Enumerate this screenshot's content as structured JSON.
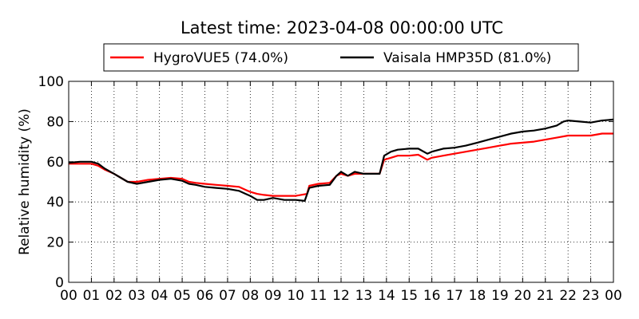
{
  "chart_data": {
    "type": "line",
    "title": "Latest time: 2023-04-08 00:00:00 UTC",
    "ylabel": "Relative humidity (%)",
    "xlabel": "",
    "ylim": [
      0,
      100
    ],
    "yticks": [
      0,
      20,
      40,
      60,
      80,
      100
    ],
    "xlim": [
      0,
      24
    ],
    "xticks": [
      "00",
      "01",
      "02",
      "03",
      "04",
      "05",
      "06",
      "07",
      "08",
      "09",
      "10",
      "11",
      "12",
      "13",
      "14",
      "15",
      "16",
      "17",
      "18",
      "19",
      "20",
      "21",
      "22",
      "23",
      "00"
    ],
    "grid": true,
    "legend": "top-center",
    "series": [
      {
        "name": "HygroVUE5 (74.0%)",
        "color": "#ff0000",
        "points": [
          [
            0,
            59
          ],
          [
            0.5,
            59
          ],
          [
            1,
            59
          ],
          [
            1.3,
            58
          ],
          [
            1.6,
            56
          ],
          [
            2,
            54
          ],
          [
            2.3,
            52
          ],
          [
            2.6,
            50
          ],
          [
            3,
            50
          ],
          [
            3.5,
            51
          ],
          [
            4,
            51.5
          ],
          [
            4.5,
            52
          ],
          [
            5,
            51.5
          ],
          [
            5.3,
            50
          ],
          [
            5.6,
            49.5
          ],
          [
            6,
            49
          ],
          [
            6.5,
            48.5
          ],
          [
            7,
            48
          ],
          [
            7.5,
            47.5
          ],
          [
            7.8,
            46
          ],
          [
            8,
            45
          ],
          [
            8.3,
            44
          ],
          [
            8.6,
            43.5
          ],
          [
            9,
            43
          ],
          [
            9.5,
            43
          ],
          [
            10,
            43
          ],
          [
            10.5,
            44
          ],
          [
            10.6,
            48
          ],
          [
            11,
            49
          ],
          [
            11.5,
            49.5
          ],
          [
            11.8,
            53
          ],
          [
            12,
            54
          ],
          [
            12.3,
            53
          ],
          [
            12.6,
            54
          ],
          [
            13,
            54
          ],
          [
            13.4,
            54
          ],
          [
            13.7,
            54
          ],
          [
            13.9,
            61
          ],
          [
            14.2,
            62
          ],
          [
            14.5,
            63
          ],
          [
            15,
            63
          ],
          [
            15.4,
            63.5
          ],
          [
            15.8,
            61
          ],
          [
            16,
            62
          ],
          [
            16.5,
            63
          ],
          [
            17,
            64
          ],
          [
            17.5,
            65
          ],
          [
            18,
            66
          ],
          [
            18.5,
            67
          ],
          [
            19,
            68
          ],
          [
            19.5,
            69
          ],
          [
            20,
            69.5
          ],
          [
            20.5,
            70
          ],
          [
            21,
            71
          ],
          [
            21.5,
            72
          ],
          [
            22,
            73
          ],
          [
            22.5,
            73
          ],
          [
            23,
            73
          ],
          [
            23.5,
            74
          ],
          [
            24,
            74
          ]
        ]
      },
      {
        "name": "Vaisala HMP35D (81.0%)",
        "color": "#000000",
        "points": [
          [
            0,
            59.5
          ],
          [
            0.5,
            60
          ],
          [
            1,
            60
          ],
          [
            1.3,
            59
          ],
          [
            1.6,
            56.5
          ],
          [
            2,
            54
          ],
          [
            2.3,
            52
          ],
          [
            2.6,
            50
          ],
          [
            3,
            49
          ],
          [
            3.5,
            50
          ],
          [
            4,
            51
          ],
          [
            4.5,
            51.5
          ],
          [
            5,
            50.5
          ],
          [
            5.3,
            49
          ],
          [
            5.6,
            48.5
          ],
          [
            6,
            47.5
          ],
          [
            6.5,
            47
          ],
          [
            7,
            46.5
          ],
          [
            7.5,
            45.5
          ],
          [
            7.8,
            44
          ],
          [
            8,
            43
          ],
          [
            8.3,
            41
          ],
          [
            8.6,
            41
          ],
          [
            9,
            42
          ],
          [
            9.5,
            41
          ],
          [
            10,
            41
          ],
          [
            10.4,
            40.5
          ],
          [
            10.6,
            47
          ],
          [
            11,
            48
          ],
          [
            11.5,
            48.5
          ],
          [
            11.8,
            53
          ],
          [
            12,
            55
          ],
          [
            12.3,
            53
          ],
          [
            12.6,
            55
          ],
          [
            13,
            54
          ],
          [
            13.4,
            54
          ],
          [
            13.7,
            54
          ],
          [
            13.9,
            63
          ],
          [
            14.2,
            65
          ],
          [
            14.5,
            66
          ],
          [
            15,
            66.5
          ],
          [
            15.4,
            66.5
          ],
          [
            15.8,
            64
          ],
          [
            16,
            65
          ],
          [
            16.5,
            66.5
          ],
          [
            17,
            67
          ],
          [
            17.5,
            68
          ],
          [
            18,
            69.5
          ],
          [
            18.5,
            71
          ],
          [
            19,
            72.5
          ],
          [
            19.5,
            74
          ],
          [
            20,
            75
          ],
          [
            20.5,
            75.5
          ],
          [
            21,
            76.5
          ],
          [
            21.5,
            78
          ],
          [
            21.8,
            80
          ],
          [
            22,
            80.5
          ],
          [
            22.5,
            80
          ],
          [
            23,
            79.5
          ],
          [
            23.5,
            80.5
          ],
          [
            24,
            81
          ]
        ]
      }
    ]
  }
}
